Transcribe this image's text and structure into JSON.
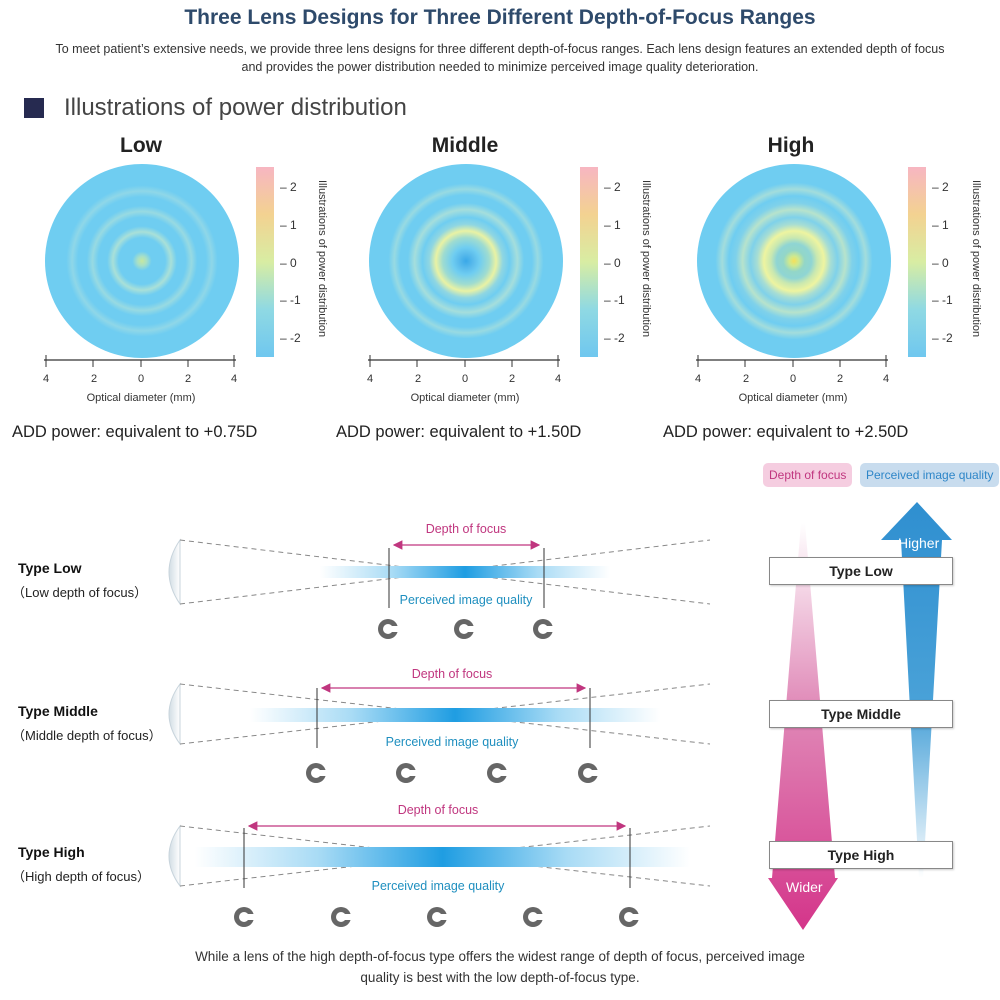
{
  "header": {
    "title": "Three Lens Designs for Three Different Depth-of-Focus Ranges",
    "intro_line1": "To meet patient’s extensive needs, we provide three lens designs for three different depth-of-focus ranges. Each lens design features an extended depth of focus",
    "intro_line2": "and provides the power distribution needed to minimize perceived image quality deterioration."
  },
  "section": {
    "title": "Illustrations of power distribution"
  },
  "colorbar": {
    "ticks": [
      "2",
      "1",
      "0",
      "-1",
      "-2"
    ],
    "label": "Illustrations of power distribution"
  },
  "axis": {
    "ticks": [
      "4",
      "2",
      "0",
      "2",
      "4"
    ],
    "caption": "Optical diameter (mm)"
  },
  "lenses": [
    {
      "title": "Low",
      "add_power": "ADD power: equivalent to +0.75D",
      "ring_strength": 0.35
    },
    {
      "title": "Middle",
      "add_power": "ADD power: equivalent to +1.50D",
      "ring_strength": 0.7
    },
    {
      "title": "High",
      "add_power": "ADD power: equivalent to +2.50D",
      "ring_strength": 1.0
    }
  ],
  "colors": {
    "lens_base": "#6fcdf1",
    "magenta": "#d4358a",
    "blue": "#2f8fd0",
    "dof_text": "#c0367f",
    "piq_text": "#1f8fbf"
  },
  "types": [
    {
      "name": "Type Low",
      "sub": "（Low depth of focus）",
      "dof_label": "Depth of focus",
      "piq_label": "Perceived image quality",
      "c_count": 3
    },
    {
      "name": "Type Middle",
      "sub": "（Middle depth of focus）",
      "dof_label": "Depth of focus",
      "piq_label": "Perceived image quality",
      "c_count": 4
    },
    {
      "name": "Type High",
      "sub": "（High depth of focus）",
      "dof_label": "Depth of focus",
      "piq_label": "Perceived image quality",
      "c_count": 5
    }
  ],
  "legend": {
    "dof_pill": "Depth of focus",
    "piq_pill": "Perceived image quality",
    "higher": "Higher",
    "wider": "Wider",
    "type_low": "Type Low",
    "type_middle": "Type Middle",
    "type_high": "Type High"
  },
  "footer": {
    "line1": "While a lens of the high depth-of-focus type offers the widest range of depth of focus, perceived image",
    "line2": "quality is best with the low depth-of-focus type."
  }
}
